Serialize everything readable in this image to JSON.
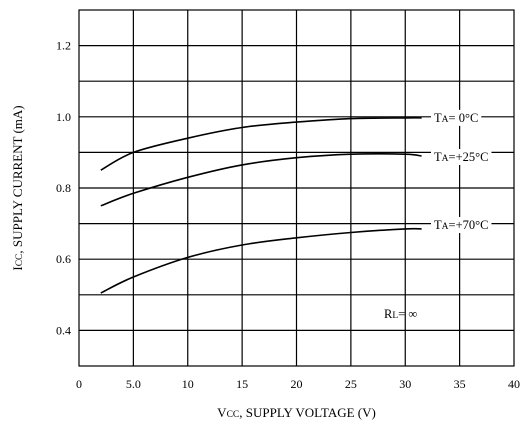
{
  "chart_data": {
    "type": "line",
    "title": "",
    "xlabel": {
      "main": "V",
      "sub": "CC",
      "rest": ", SUPPLY VOLTAGE (V)"
    },
    "ylabel": {
      "main": "I",
      "sub": "CC",
      "rest": ", SUPPLY CURRENT (mA)"
    },
    "xlim": [
      0,
      40
    ],
    "ylim": [
      0.3,
      1.3
    ],
    "xticks": [
      0,
      5,
      10,
      15,
      20,
      25,
      30,
      35,
      40
    ],
    "xtick_labels": [
      "0",
      "5.0",
      "10",
      "15",
      "20",
      "25",
      "30",
      "35",
      "40"
    ],
    "yticks": [
      0.4,
      0.6,
      0.8,
      1.0,
      1.2
    ],
    "ytick_labels": [
      "0.4",
      "0.6",
      "0.8",
      "1.0",
      "1.2"
    ],
    "grid": true,
    "series": [
      {
        "label": {
          "main": "T",
          "sub": "A",
          "rest": "=  0°C"
        },
        "x": [
          2,
          5,
          10,
          15,
          20,
          25,
          30,
          31.5
        ],
        "y": [
          0.85,
          0.9,
          0.94,
          0.97,
          0.985,
          0.995,
          0.997,
          0.997
        ]
      },
      {
        "label": {
          "main": "T",
          "sub": "A",
          "rest": "=+25°C"
        },
        "x": [
          2,
          5,
          10,
          15,
          20,
          25,
          30,
          31.5
        ],
        "y": [
          0.75,
          0.785,
          0.83,
          0.865,
          0.885,
          0.895,
          0.895,
          0.89
        ]
      },
      {
        "label": {
          "main": "T",
          "sub": "A",
          "rest": "=+70°C"
        },
        "x": [
          2,
          5,
          10,
          15,
          20,
          25,
          30,
          31.5
        ],
        "y": [
          0.505,
          0.55,
          0.605,
          0.64,
          0.66,
          0.675,
          0.685,
          0.685
        ]
      }
    ],
    "annotations": [
      {
        "main": "R",
        "sub": "L",
        "rest": "= ∞"
      }
    ]
  }
}
